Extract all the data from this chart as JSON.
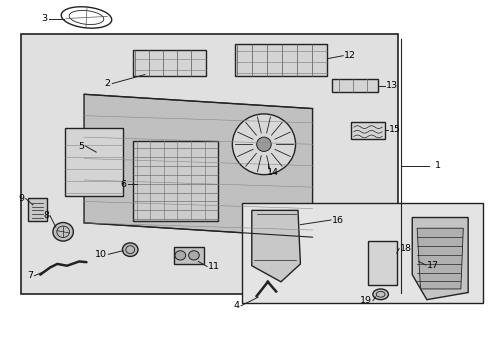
{
  "background_color": "#ffffff",
  "diagram_bg": "#e0e0e0",
  "line_color": "#222222",
  "label_fontsize": 6.8
}
